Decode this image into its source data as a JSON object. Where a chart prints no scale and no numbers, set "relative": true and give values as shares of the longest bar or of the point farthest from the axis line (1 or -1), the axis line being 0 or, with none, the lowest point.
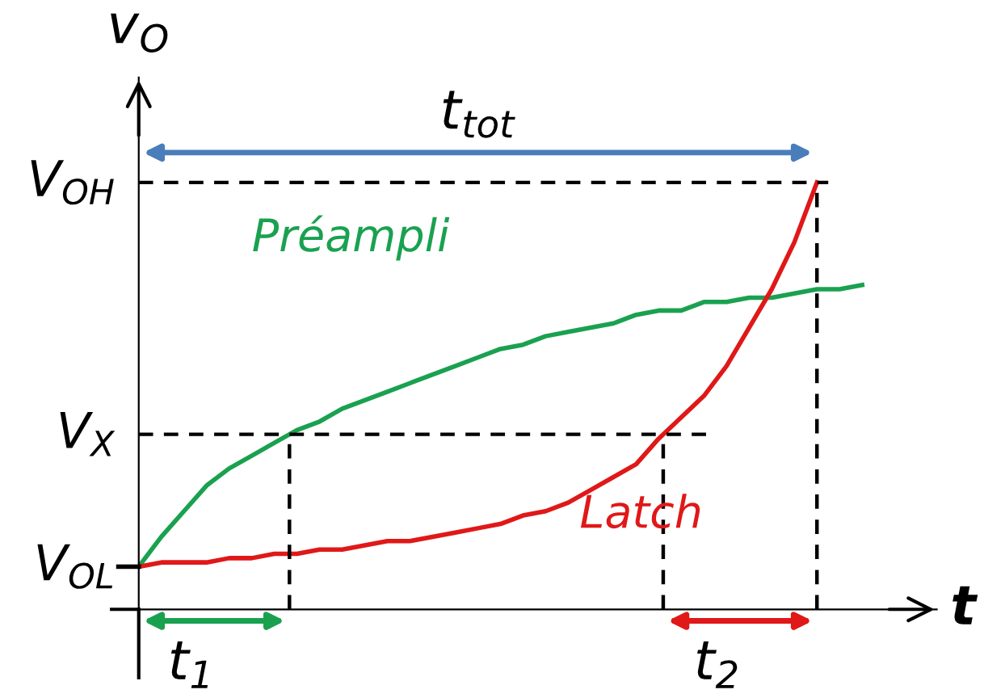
{
  "chart_data": {
    "type": "line",
    "relative": true,
    "xlabel": "t",
    "ylabel": "v$_{O}$",
    "categories": [
      null,
      null,
      null,
      null,
      null,
      null,
      null,
      null,
      null,
      null,
      null,
      null,
      null,
      null,
      null,
      null,
      null,
      null,
      null,
      null,
      null,
      null,
      null,
      null,
      null,
      null,
      null,
      null,
      null,
      null,
      null,
      null,
      null
    ],
    "series": [
      {
        "name": "Préampli",
        "color": "#1aa150",
        "values": [
          0.1,
          0.17,
          0.23,
          0.29,
          0.33,
          0.36,
          0.39,
          0.42,
          0.44,
          0.47,
          0.49,
          0.51,
          0.53,
          0.55,
          0.57,
          0.59,
          0.61,
          0.62,
          0.64,
          0.65,
          0.66,
          0.67,
          0.69,
          0.7,
          0.7,
          0.72,
          0.72,
          0.73,
          0.73,
          0.74,
          0.75,
          0.75,
          0.76
        ]
      },
      {
        "name": "Latch",
        "color": "#e01818",
        "values": [
          0.1,
          0.11,
          0.11,
          0.11,
          0.12,
          0.12,
          0.13,
          0.13,
          0.14,
          0.14,
          0.15,
          0.16,
          0.16,
          0.17,
          0.18,
          0.19,
          0.2,
          0.22,
          0.23,
          0.25,
          0.28,
          0.31,
          0.34,
          0.4,
          0.45,
          0.5,
          0.57,
          0.66,
          0.75,
          0.86,
          1.0,
          null,
          null
        ]
      }
    ],
    "ref_lines": [
      {
        "axis": "y",
        "value": 0.1,
        "label": "V$_{OL}$",
        "line_style": "solid"
      },
      {
        "axis": "y",
        "value": 0.41,
        "label": "V$_{X}$",
        "line_style": "dashed"
      },
      {
        "axis": "y",
        "value": 1.0,
        "label": "V$_{OH}$",
        "line_style": "dashed"
      }
    ],
    "annotations": [
      "t$_{tot}$",
      "t$_{1}$",
      "t$_{2}$"
    ],
    "marker": "none",
    "line_style": "solid",
    "legend": false
  }
}
